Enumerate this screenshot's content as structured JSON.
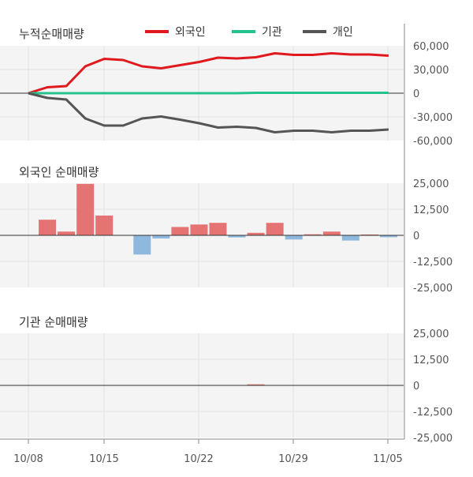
{
  "colors": {
    "foreigner": "#e0191e",
    "institution": "#26c28b",
    "individual": "#555555",
    "bar_positive": "#e67373",
    "bar_negative": "#8fb8de",
    "panel_bg": "#f4f4f4",
    "grid": "#e2e2e2",
    "axis": "#888888"
  },
  "x_labels": [
    "10/08",
    "10/15",
    "10/22",
    "10/29",
    "11/05"
  ],
  "chart_data": [
    {
      "type": "line",
      "title": "누적순매매량",
      "ylim": [
        -60000,
        60000
      ],
      "yticks": [
        "60,000",
        "30,000",
        "0",
        "-30,000",
        "-60,000"
      ],
      "legend": [
        {
          "name": "외국인",
          "color": "#e0191e"
        },
        {
          "name": "기관",
          "color": "#26c28b"
        },
        {
          "name": "개인",
          "color": "#555555"
        }
      ],
      "series": [
        {
          "name": "외국인",
          "color": "#e0191e",
          "values": [
            0,
            7500,
            9000,
            34000,
            43500,
            42000,
            34000,
            31500,
            35500,
            39500,
            45000,
            44000,
            45500,
            50500,
            48500,
            48500,
            50500,
            49000,
            49000,
            47500
          ]
        },
        {
          "name": "기관",
          "color": "#26c28b",
          "values": [
            0,
            0,
            0,
            0,
            0,
            0,
            0,
            0,
            0,
            0,
            0,
            0,
            500,
            500,
            500,
            500,
            500,
            500,
            500,
            500
          ]
        },
        {
          "name": "개인",
          "color": "#555555",
          "values": [
            0,
            -6000,
            -8000,
            -32000,
            -41000,
            -41000,
            -32000,
            -29500,
            -33500,
            -38000,
            -43500,
            -42500,
            -44000,
            -49500,
            -47500,
            -47500,
            -49500,
            -47500,
            -47500,
            -46000
          ]
        }
      ]
    },
    {
      "type": "bar",
      "title": "외국인 순매매량",
      "ylim": [
        -25000,
        25000
      ],
      "yticks": [
        "25,000",
        "12,500",
        "0",
        "-12,500",
        "-25,000"
      ],
      "values": [
        null,
        7500,
        1800,
        24700,
        9500,
        null,
        -9200,
        -1500,
        4000,
        5200,
        6000,
        -1000,
        1200,
        6000,
        -2000,
        500,
        1800,
        -2500,
        400,
        -900
      ]
    },
    {
      "type": "bar",
      "title": "기관 순매매량",
      "ylim": [
        -25000,
        25000
      ],
      "yticks": [
        "25,000",
        "12,500",
        "0",
        "-12,500",
        "-25,000"
      ],
      "values": [
        null,
        0,
        0,
        0,
        0,
        null,
        0,
        0,
        0,
        0,
        0,
        0,
        500,
        0,
        0,
        0,
        0,
        0,
        0,
        0
      ]
    }
  ]
}
